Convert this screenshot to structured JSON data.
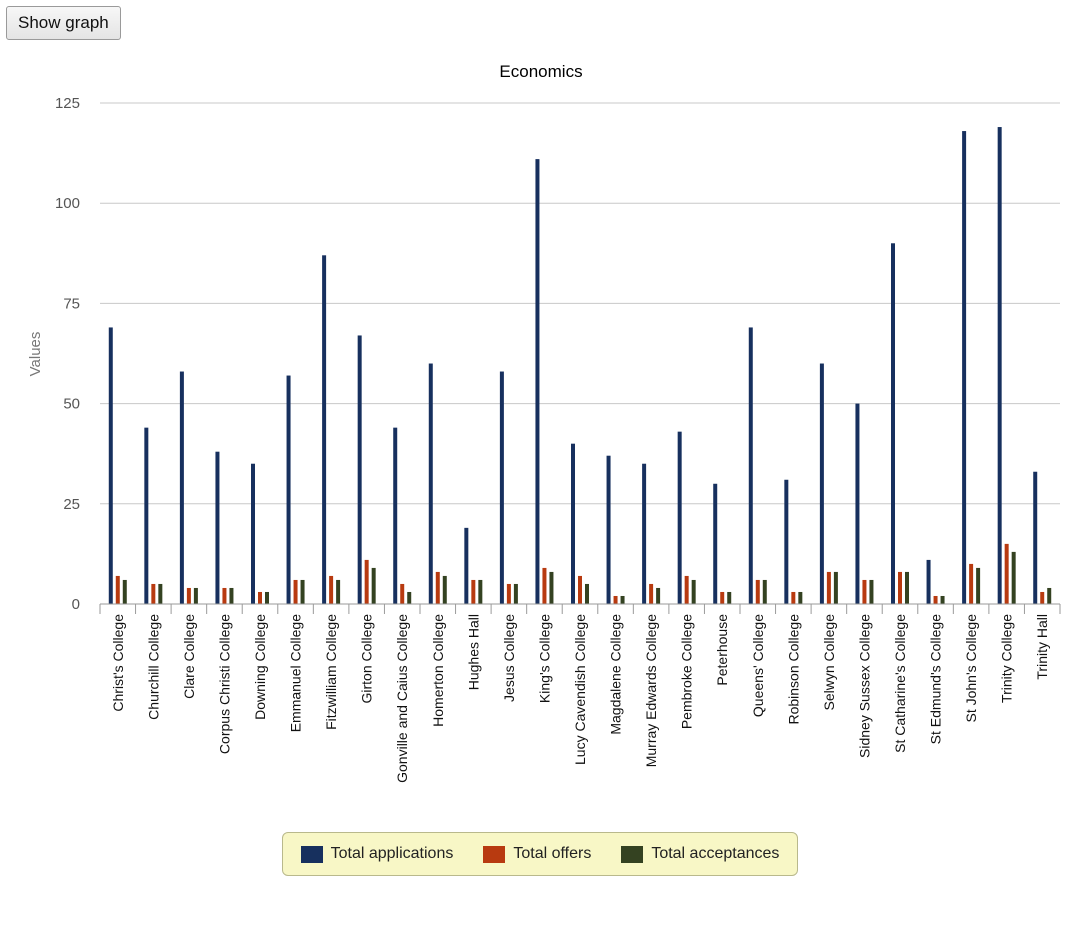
{
  "toolbar": {
    "show_graph_label": "Show graph"
  },
  "chart_data": {
    "type": "bar",
    "title": "Economics",
    "xlabel": "",
    "ylabel": "Values",
    "ylim": [
      0,
      125
    ],
    "yticks": [
      0,
      25,
      50,
      75,
      100,
      125
    ],
    "grid": true,
    "legend_position": "bottom",
    "categories": [
      "Christ's College",
      "Churchill College",
      "Clare College",
      "Corpus Christi College",
      "Downing College",
      "Emmanuel College",
      "Fitzwilliam College",
      "Girton College",
      "Gonville and Caius College",
      "Homerton College",
      "Hughes Hall",
      "Jesus College",
      "King's College",
      "Lucy Cavendish College",
      "Magdalene College",
      "Murray Edwards College",
      "Pembroke College",
      "Peterhouse",
      "Queens' College",
      "Robinson College",
      "Selwyn College",
      "Sidney Sussex College",
      "St Catharine's College",
      "St Edmund's College",
      "St John's College",
      "Trinity College",
      "Trinity Hall"
    ],
    "series": [
      {
        "name": "Total applications",
        "color": "#17305e",
        "values": [
          69,
          44,
          58,
          38,
          35,
          57,
          87,
          67,
          44,
          60,
          19,
          58,
          111,
          40,
          37,
          35,
          43,
          30,
          69,
          31,
          60,
          50,
          90,
          11,
          118,
          119,
          33
        ]
      },
      {
        "name": "Total offers",
        "color": "#b83a10",
        "values": [
          7,
          5,
          4,
          4,
          3,
          6,
          7,
          11,
          5,
          8,
          6,
          5,
          9,
          7,
          2,
          5,
          7,
          3,
          6,
          3,
          8,
          6,
          8,
          2,
          10,
          15,
          3
        ]
      },
      {
        "name": "Total acceptances",
        "color": "#344221",
        "values": [
          6,
          5,
          4,
          4,
          3,
          6,
          6,
          9,
          3,
          7,
          6,
          5,
          8,
          5,
          2,
          4,
          6,
          3,
          6,
          3,
          8,
          6,
          8,
          2,
          9,
          13,
          4
        ]
      }
    ]
  }
}
